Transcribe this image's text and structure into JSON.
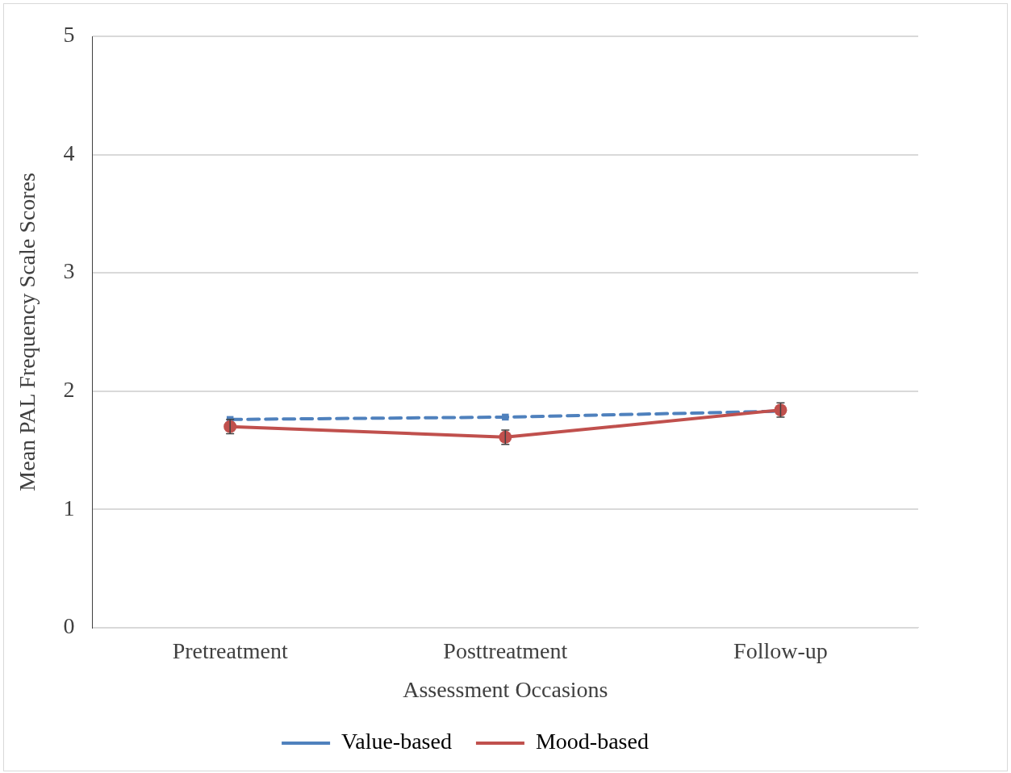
{
  "chart_data": {
    "type": "line",
    "xlabel": "Assessment Occasions",
    "ylabel": "Mean PAL Frequency Scale Scores",
    "categories": [
      "Pretreatment",
      "Posttreatment",
      "Follow-up"
    ],
    "series": [
      {
        "name": "Value-based",
        "color": "#4f81bd",
        "values": [
          1.76,
          1.78,
          1.83
        ],
        "marker": "square",
        "line_style": "dashed"
      },
      {
        "name": "Mood-based",
        "color": "#c0504d",
        "values": [
          1.7,
          1.61,
          1.84
        ],
        "marker": "circle",
        "line_style": "solid",
        "errors": [
          0.06,
          0.06,
          0.06
        ]
      }
    ],
    "ylim": [
      0,
      5
    ],
    "yticks": [
      0,
      1,
      2,
      3,
      4,
      5
    ],
    "grid": "y",
    "legend": "bottom"
  }
}
